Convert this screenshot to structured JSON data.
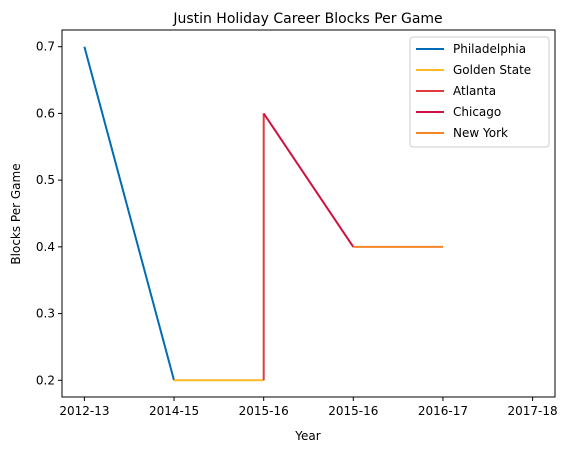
{
  "chart_data": {
    "type": "line",
    "title": "Justin Holiday Career Blocks Per Game",
    "xlabel": "Year",
    "ylabel": "Blocks Per Game",
    "categories": [
      "2012-13",
      "2014-15",
      "2015-16",
      "2015-16",
      "2016-17",
      "2017-18"
    ],
    "ylim": [
      0.175,
      0.725
    ],
    "yticks": [
      0.2,
      0.3,
      0.4,
      0.5,
      0.6,
      0.7
    ],
    "ytick_labels": [
      "0.2",
      "0.3",
      "0.4",
      "0.5",
      "0.6",
      "0.7"
    ],
    "grid": false,
    "legend_position": "top-right",
    "series": [
      {
        "name": "Philadelphia",
        "color": "#006BB6",
        "x": [
          0,
          1
        ],
        "values": [
          0.7,
          0.2
        ]
      },
      {
        "name": "Golden State",
        "color": "#FDB927",
        "x": [
          1,
          2
        ],
        "values": [
          0.2,
          0.2
        ]
      },
      {
        "name": "Atlanta",
        "color": "#E03A3E",
        "x": [
          2,
          2
        ],
        "values": [
          0.2,
          0.6
        ]
      },
      {
        "name": "Chicago",
        "color": "#CE1141",
        "x": [
          2,
          3
        ],
        "values": [
          0.6,
          0.4
        ]
      },
      {
        "name": "New York",
        "color": "#F58426",
        "x": [
          3,
          4
        ],
        "values": [
          0.4,
          0.4
        ]
      }
    ]
  }
}
